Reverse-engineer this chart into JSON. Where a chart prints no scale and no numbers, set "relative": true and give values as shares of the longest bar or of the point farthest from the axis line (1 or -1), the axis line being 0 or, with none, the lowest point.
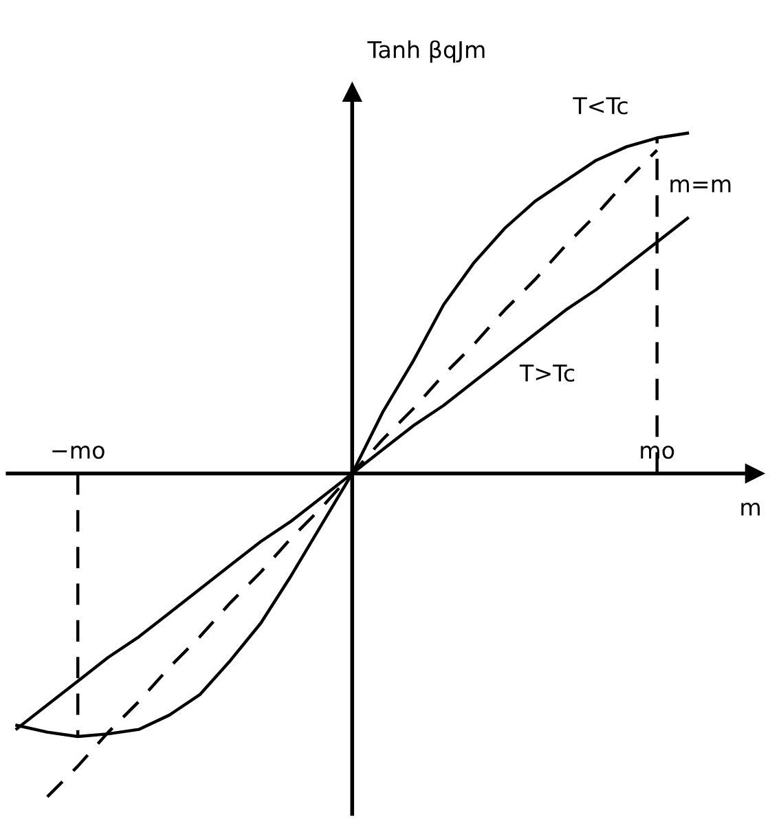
{
  "chart_data": {
    "type": "line",
    "relative": true,
    "xlabel": "m",
    "ylabel": "Tanh βqJm",
    "legend": false,
    "marker": "none",
    "categories": [
      null,
      null,
      "−mo",
      null,
      null,
      null,
      null,
      null,
      null,
      null,
      null,
      null,
      null,
      null,
      null,
      null,
      null,
      null,
      null,
      null,
      null,
      "mo",
      null
    ],
    "series": [
      {
        "name": "T<Tc",
        "color": "#000000",
        "line_style": "solid",
        "values": [
          -0.74,
          -0.76,
          -0.773,
          -0.765,
          -0.752,
          -0.71,
          -0.65,
          -0.55,
          -0.44,
          -0.3,
          -0.15,
          0,
          0.18,
          0.33,
          0.496,
          0.62,
          0.72,
          0.8,
          0.86,
          0.92,
          0.96,
          0.986,
          1.0
        ]
      },
      {
        "name": "m=m",
        "color": "#000000",
        "line_style": "dashed",
        "values": [
          null,
          -0.95,
          -0.86,
          -0.76,
          -0.67,
          -0.57,
          -0.48,
          -0.38,
          -0.29,
          -0.19,
          -0.1,
          0,
          0.1,
          0.19,
          0.29,
          0.38,
          0.48,
          0.57,
          0.67,
          0.76,
          0.86,
          0.95,
          null
        ]
      },
      {
        "name": "T>Tc",
        "color": "#000000",
        "line_style": "solid",
        "values": [
          -0.75,
          -0.68,
          -0.61,
          -0.54,
          -0.48,
          -0.41,
          -0.34,
          -0.27,
          -0.2,
          -0.14,
          -0.07,
          0,
          0.07,
          0.14,
          0.2,
          0.27,
          0.34,
          0.41,
          0.48,
          0.54,
          0.61,
          0.68,
          0.75
        ]
      }
    ],
    "ref_lines": [
      {
        "axis": "x",
        "value": "mo",
        "line_style": "dashed",
        "color": "#000000"
      },
      {
        "axis": "x",
        "value": "−mo",
        "line_style": "dashed",
        "color": "#000000"
      }
    ]
  }
}
